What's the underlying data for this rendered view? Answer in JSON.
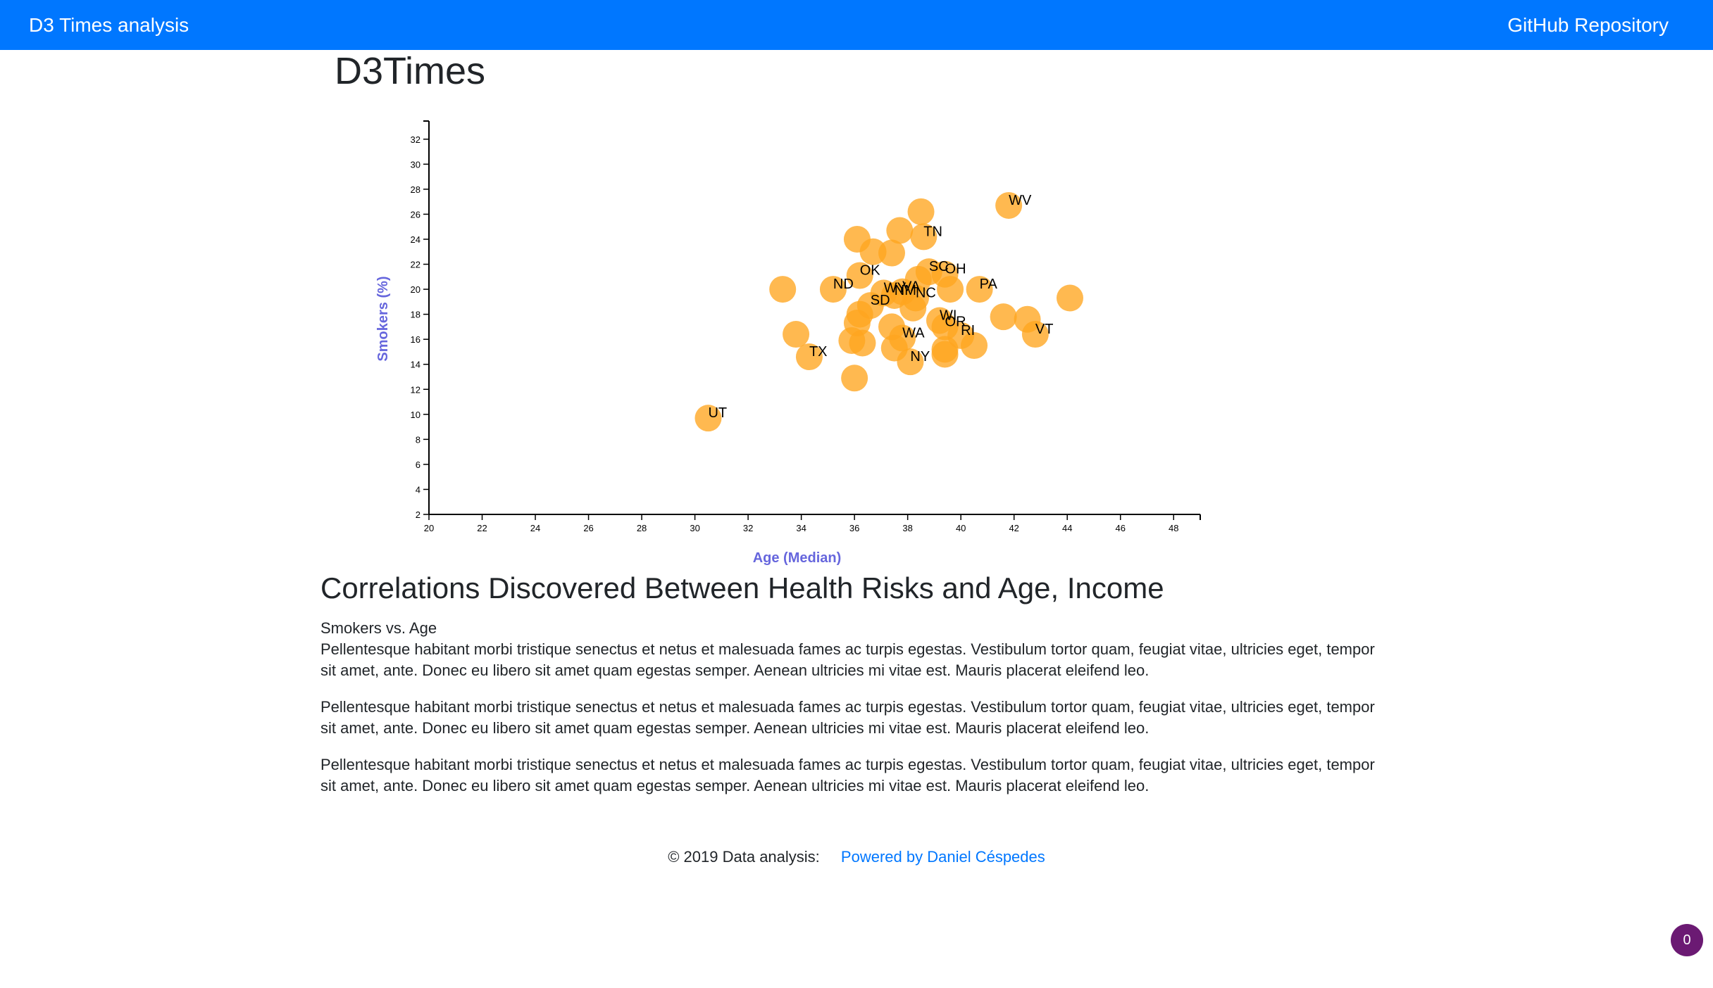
{
  "navbar": {
    "brand": "D3 Times analysis",
    "repo_link": "GitHub Repository"
  },
  "page_title": "D3Times",
  "chart_data": {
    "type": "scatter",
    "title": "",
    "xlabel": "Age (Median)",
    "ylabel": "Smokers (%)",
    "xlim": [
      20,
      49
    ],
    "ylim": [
      2,
      33
    ],
    "x_ticks": [
      20,
      22,
      24,
      26,
      28,
      30,
      32,
      34,
      36,
      38,
      40,
      42,
      44,
      46,
      48
    ],
    "y_ticks": [
      2,
      4,
      6,
      8,
      10,
      12,
      14,
      16,
      18,
      20,
      22,
      24,
      26,
      28,
      30,
      32
    ],
    "grid": false,
    "marker_color": "#ffa51f",
    "label_color": "#000000",
    "axis_label_color": "#6666dd",
    "points": [
      {
        "x": 41.8,
        "y": 26.7,
        "label": "WV"
      },
      {
        "x": 38.5,
        "y": 26.2,
        "label": ""
      },
      {
        "x": 37.7,
        "y": 24.7,
        "label": ""
      },
      {
        "x": 38.6,
        "y": 24.2,
        "label": "TN"
      },
      {
        "x": 36.1,
        "y": 24.0,
        "label": ""
      },
      {
        "x": 36.7,
        "y": 23.0,
        "label": ""
      },
      {
        "x": 37.4,
        "y": 22.9,
        "label": ""
      },
      {
        "x": 38.8,
        "y": 21.4,
        "label": "SC"
      },
      {
        "x": 39.4,
        "y": 21.2,
        "label": "OH"
      },
      {
        "x": 36.2,
        "y": 21.1,
        "label": "OK"
      },
      {
        "x": 38.4,
        "y": 20.8,
        "label": ""
      },
      {
        "x": 39.6,
        "y": 20.0,
        "label": ""
      },
      {
        "x": 33.3,
        "y": 20.0,
        "label": ""
      },
      {
        "x": 35.2,
        "y": 20.0,
        "label": "ND"
      },
      {
        "x": 40.7,
        "y": 20.0,
        "label": "PA"
      },
      {
        "x": 37.1,
        "y": 19.7,
        "label": "WY"
      },
      {
        "x": 37.8,
        "y": 19.8,
        "label": "VA"
      },
      {
        "x": 37.5,
        "y": 19.5,
        "label": "NM"
      },
      {
        "x": 38.3,
        "y": 19.3,
        "label": "NC"
      },
      {
        "x": 44.1,
        "y": 19.3,
        "label": ""
      },
      {
        "x": 36.6,
        "y": 18.7,
        "label": "SD"
      },
      {
        "x": 38.2,
        "y": 18.5,
        "label": ""
      },
      {
        "x": 36.2,
        "y": 18.0,
        "label": ""
      },
      {
        "x": 39.2,
        "y": 17.5,
        "label": "WI"
      },
      {
        "x": 41.6,
        "y": 17.8,
        "label": ""
      },
      {
        "x": 42.5,
        "y": 17.6,
        "label": ""
      },
      {
        "x": 39.4,
        "y": 17.0,
        "label": "OR"
      },
      {
        "x": 36.1,
        "y": 17.3,
        "label": ""
      },
      {
        "x": 37.4,
        "y": 17.0,
        "label": ""
      },
      {
        "x": 40.0,
        "y": 16.3,
        "label": "RI"
      },
      {
        "x": 42.8,
        "y": 16.4,
        "label": "VT"
      },
      {
        "x": 33.8,
        "y": 16.4,
        "label": ""
      },
      {
        "x": 35.9,
        "y": 15.9,
        "label": ""
      },
      {
        "x": 36.3,
        "y": 15.7,
        "label": ""
      },
      {
        "x": 37.8,
        "y": 16.1,
        "label": "WA"
      },
      {
        "x": 40.5,
        "y": 15.5,
        "label": ""
      },
      {
        "x": 37.5,
        "y": 15.3,
        "label": ""
      },
      {
        "x": 39.4,
        "y": 15.2,
        "label": ""
      },
      {
        "x": 39.4,
        "y": 14.8,
        "label": ""
      },
      {
        "x": 38.1,
        "y": 14.2,
        "label": "NY"
      },
      {
        "x": 34.3,
        "y": 14.6,
        "label": "TX"
      },
      {
        "x": 36.0,
        "y": 12.9,
        "label": ""
      },
      {
        "x": 30.5,
        "y": 9.7,
        "label": "UT"
      }
    ]
  },
  "article": {
    "heading": "Correlations Discovered Between Health Risks and Age, Income",
    "subheading": "Smokers vs. Age",
    "paragraphs": [
      "Pellentesque habitant morbi tristique senectus et netus et malesuada fames ac turpis egestas. Vestibulum tortor quam, feugiat vitae, ultricies eget, tempor sit amet, ante. Donec eu libero sit amet quam egestas semper. Aenean ultricies mi vitae est. Mauris placerat eleifend leo.",
      "Pellentesque habitant morbi tristique senectus et netus et malesuada fames ac turpis egestas. Vestibulum tortor quam, feugiat vitae, ultricies eget, tempor sit amet, ante. Donec eu libero sit amet quam egestas semper. Aenean ultricies mi vitae est. Mauris placerat eleifend leo.",
      "Pellentesque habitant morbi tristique senectus et netus et malesuada fames ac turpis egestas. Vestibulum tortor quam, feugiat vitae, ultricies eget, tempor sit amet, ante. Donec eu libero sit amet quam egestas semper. Aenean ultricies mi vitae est. Mauris placerat eleifend leo."
    ]
  },
  "footer": {
    "text": "© 2019 Data analysis:",
    "link": "Powered by Daniel Céspedes"
  },
  "badge": {
    "count": "0"
  }
}
